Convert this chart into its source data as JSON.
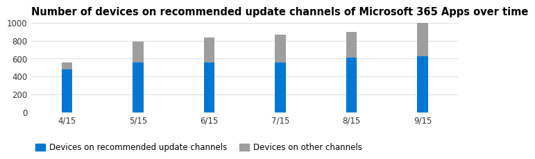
{
  "title": "Number of devices on recommended update channels of Microsoft 365 Apps over time",
  "categories": [
    "4/15",
    "5/15",
    "6/15",
    "7/15",
    "8/15",
    "9/15"
  ],
  "blue_values": [
    480,
    560,
    560,
    560,
    610,
    625
  ],
  "gray_values": [
    80,
    230,
    280,
    310,
    290,
    375
  ],
  "blue_color": "#0078D4",
  "gray_color": "#9E9E9E",
  "legend_blue": "Devices on recommended update channels",
  "legend_gray": "Devices on other channels",
  "ylim": [
    0,
    1000
  ],
  "yticks": [
    0,
    200,
    400,
    600,
    800,
    1000
  ],
  "background_color": "#ffffff",
  "title_fontsize": 10.5,
  "tick_fontsize": 8.5,
  "legend_fontsize": 8.5,
  "bar_width": 0.15
}
